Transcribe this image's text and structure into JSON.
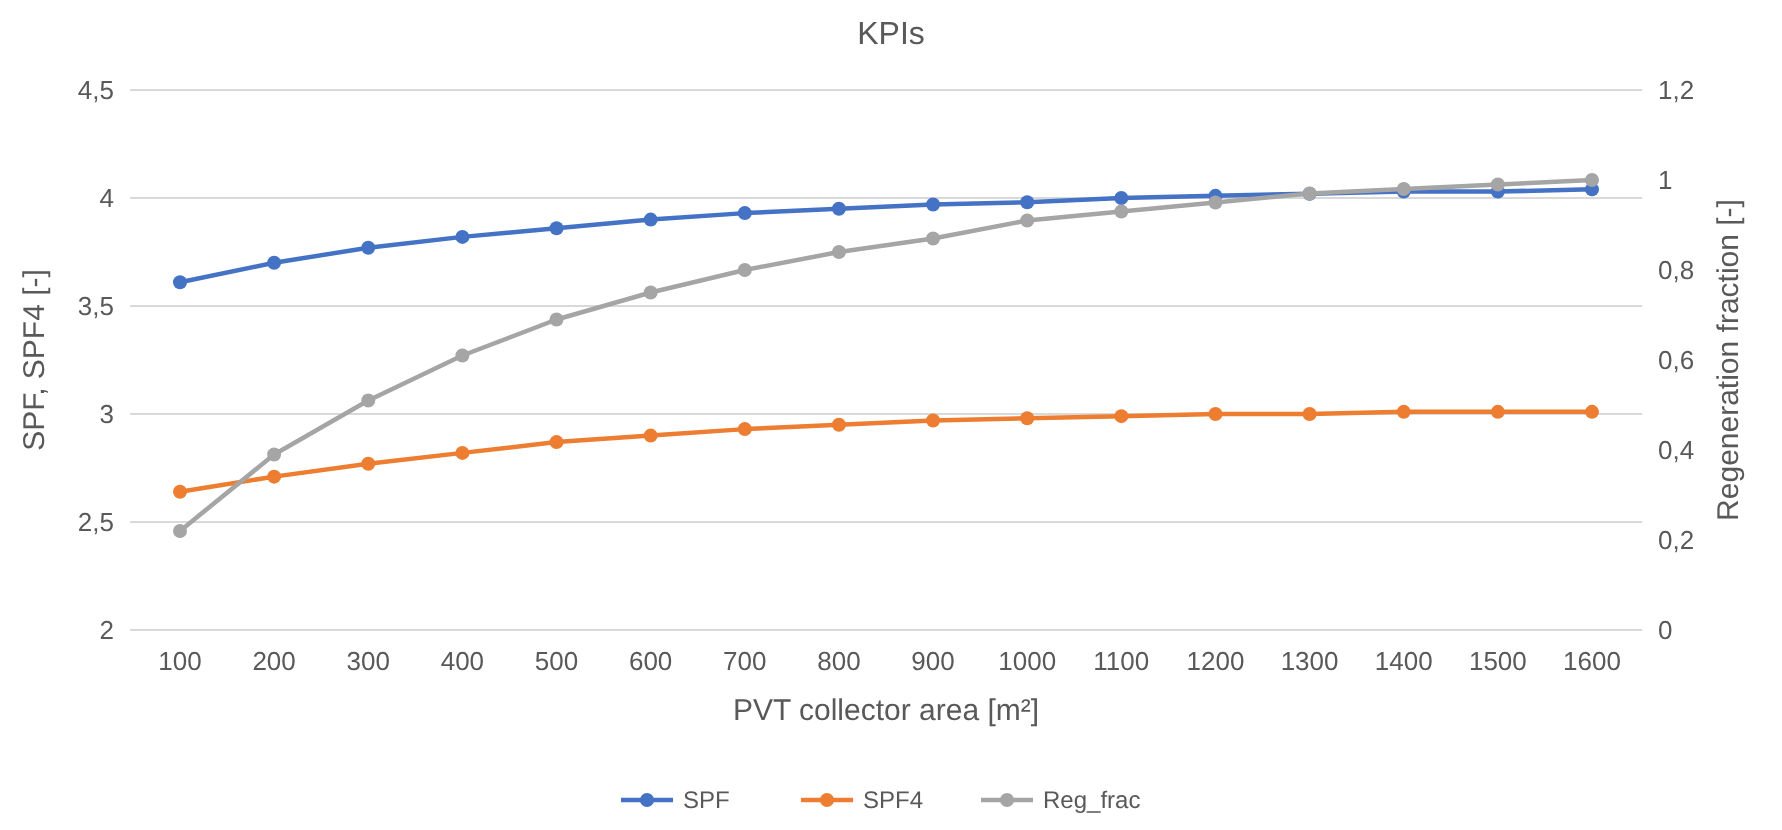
{
  "chart_data": {
    "type": "line",
    "title": "KPIs",
    "xlabel": "PVT collector area [m²]",
    "ylabel": "SPF, SPF4 [-]",
    "y2label": "Regeneration fraction [-]",
    "categories": [
      "100",
      "200",
      "300",
      "400",
      "500",
      "600",
      "700",
      "800",
      "900",
      "1000",
      "1100",
      "1200",
      "1300",
      "1400",
      "1500",
      "1600"
    ],
    "series": [
      {
        "name": "SPF",
        "color": "#4472c4",
        "values": [
          3.61,
          3.7,
          3.77,
          3.82,
          3.86,
          3.9,
          3.93,
          3.95,
          3.97,
          3.98,
          4.0,
          4.01,
          4.02,
          4.03,
          4.03,
          4.04
        ]
      },
      {
        "name": "SPF4",
        "color": "#ed7d31",
        "values": [
          2.64,
          2.71,
          2.77,
          2.82,
          2.87,
          2.9,
          2.93,
          2.95,
          2.97,
          2.98,
          2.99,
          3.0,
          3.0,
          3.01,
          3.01,
          3.01
        ]
      },
      {
        "name": "Reg_frac",
        "color": "#a5a5a5",
        "axis": "y2",
        "values": [
          0.22,
          0.39,
          0.51,
          0.61,
          0.69,
          0.75,
          0.8,
          0.84,
          0.87,
          0.91,
          0.93,
          0.95,
          0.97,
          0.98,
          0.99,
          1.0
        ]
      }
    ],
    "ylim": [
      2,
      4.5
    ],
    "yticks": [
      2,
      {
        "value": 2.5,
        "label": "2,5"
      },
      3,
      {
        "value": 3.5,
        "label": "3,5"
      },
      4,
      {
        "value": 4.5,
        "label": "4,5"
      }
    ],
    "y2lim": [
      0,
      1.2
    ],
    "y2ticks": [
      0,
      {
        "value": 0.2,
        "label": "0,2"
      },
      {
        "value": 0.4,
        "label": "0,4"
      },
      {
        "value": 0.6,
        "label": "0,6"
      },
      {
        "value": 0.8,
        "label": "0,8"
      },
      1,
      {
        "value": 1.2,
        "label": "1,2"
      }
    ],
    "grid": "y",
    "legend": "bottom",
    "marker": "circle",
    "line_style": "solid"
  }
}
